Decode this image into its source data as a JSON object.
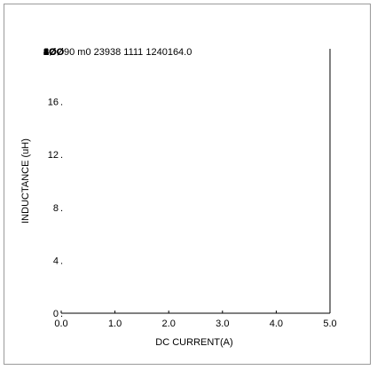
{
  "chart_data": {
    "type": "line",
    "title": "",
    "header_text_layers": [
      "2ØØ",
      "1ØØ",
      "8Ø",
      "6Ø",
      "4Ø",
      "3Ø",
      "2Ø"
    ],
    "header_text": "90 m0 23938 1111 1240164.0",
    "xlabel": "DC CURRENT(A)",
    "ylabel": "INDUCTANCE (uH)",
    "xlim": [
      0,
      5
    ],
    "ylim": [
      0,
      20
    ],
    "x_ticks": [
      "0.0",
      "1.0",
      "2.0",
      "3.0",
      "4.0",
      "5.0"
    ],
    "y_ticks": [
      "0",
      "4",
      "8",
      "12",
      "16"
    ],
    "y_tick_values": [
      0,
      4,
      8,
      12,
      16
    ],
    "series": [],
    "grid": false,
    "legend": "none"
  }
}
